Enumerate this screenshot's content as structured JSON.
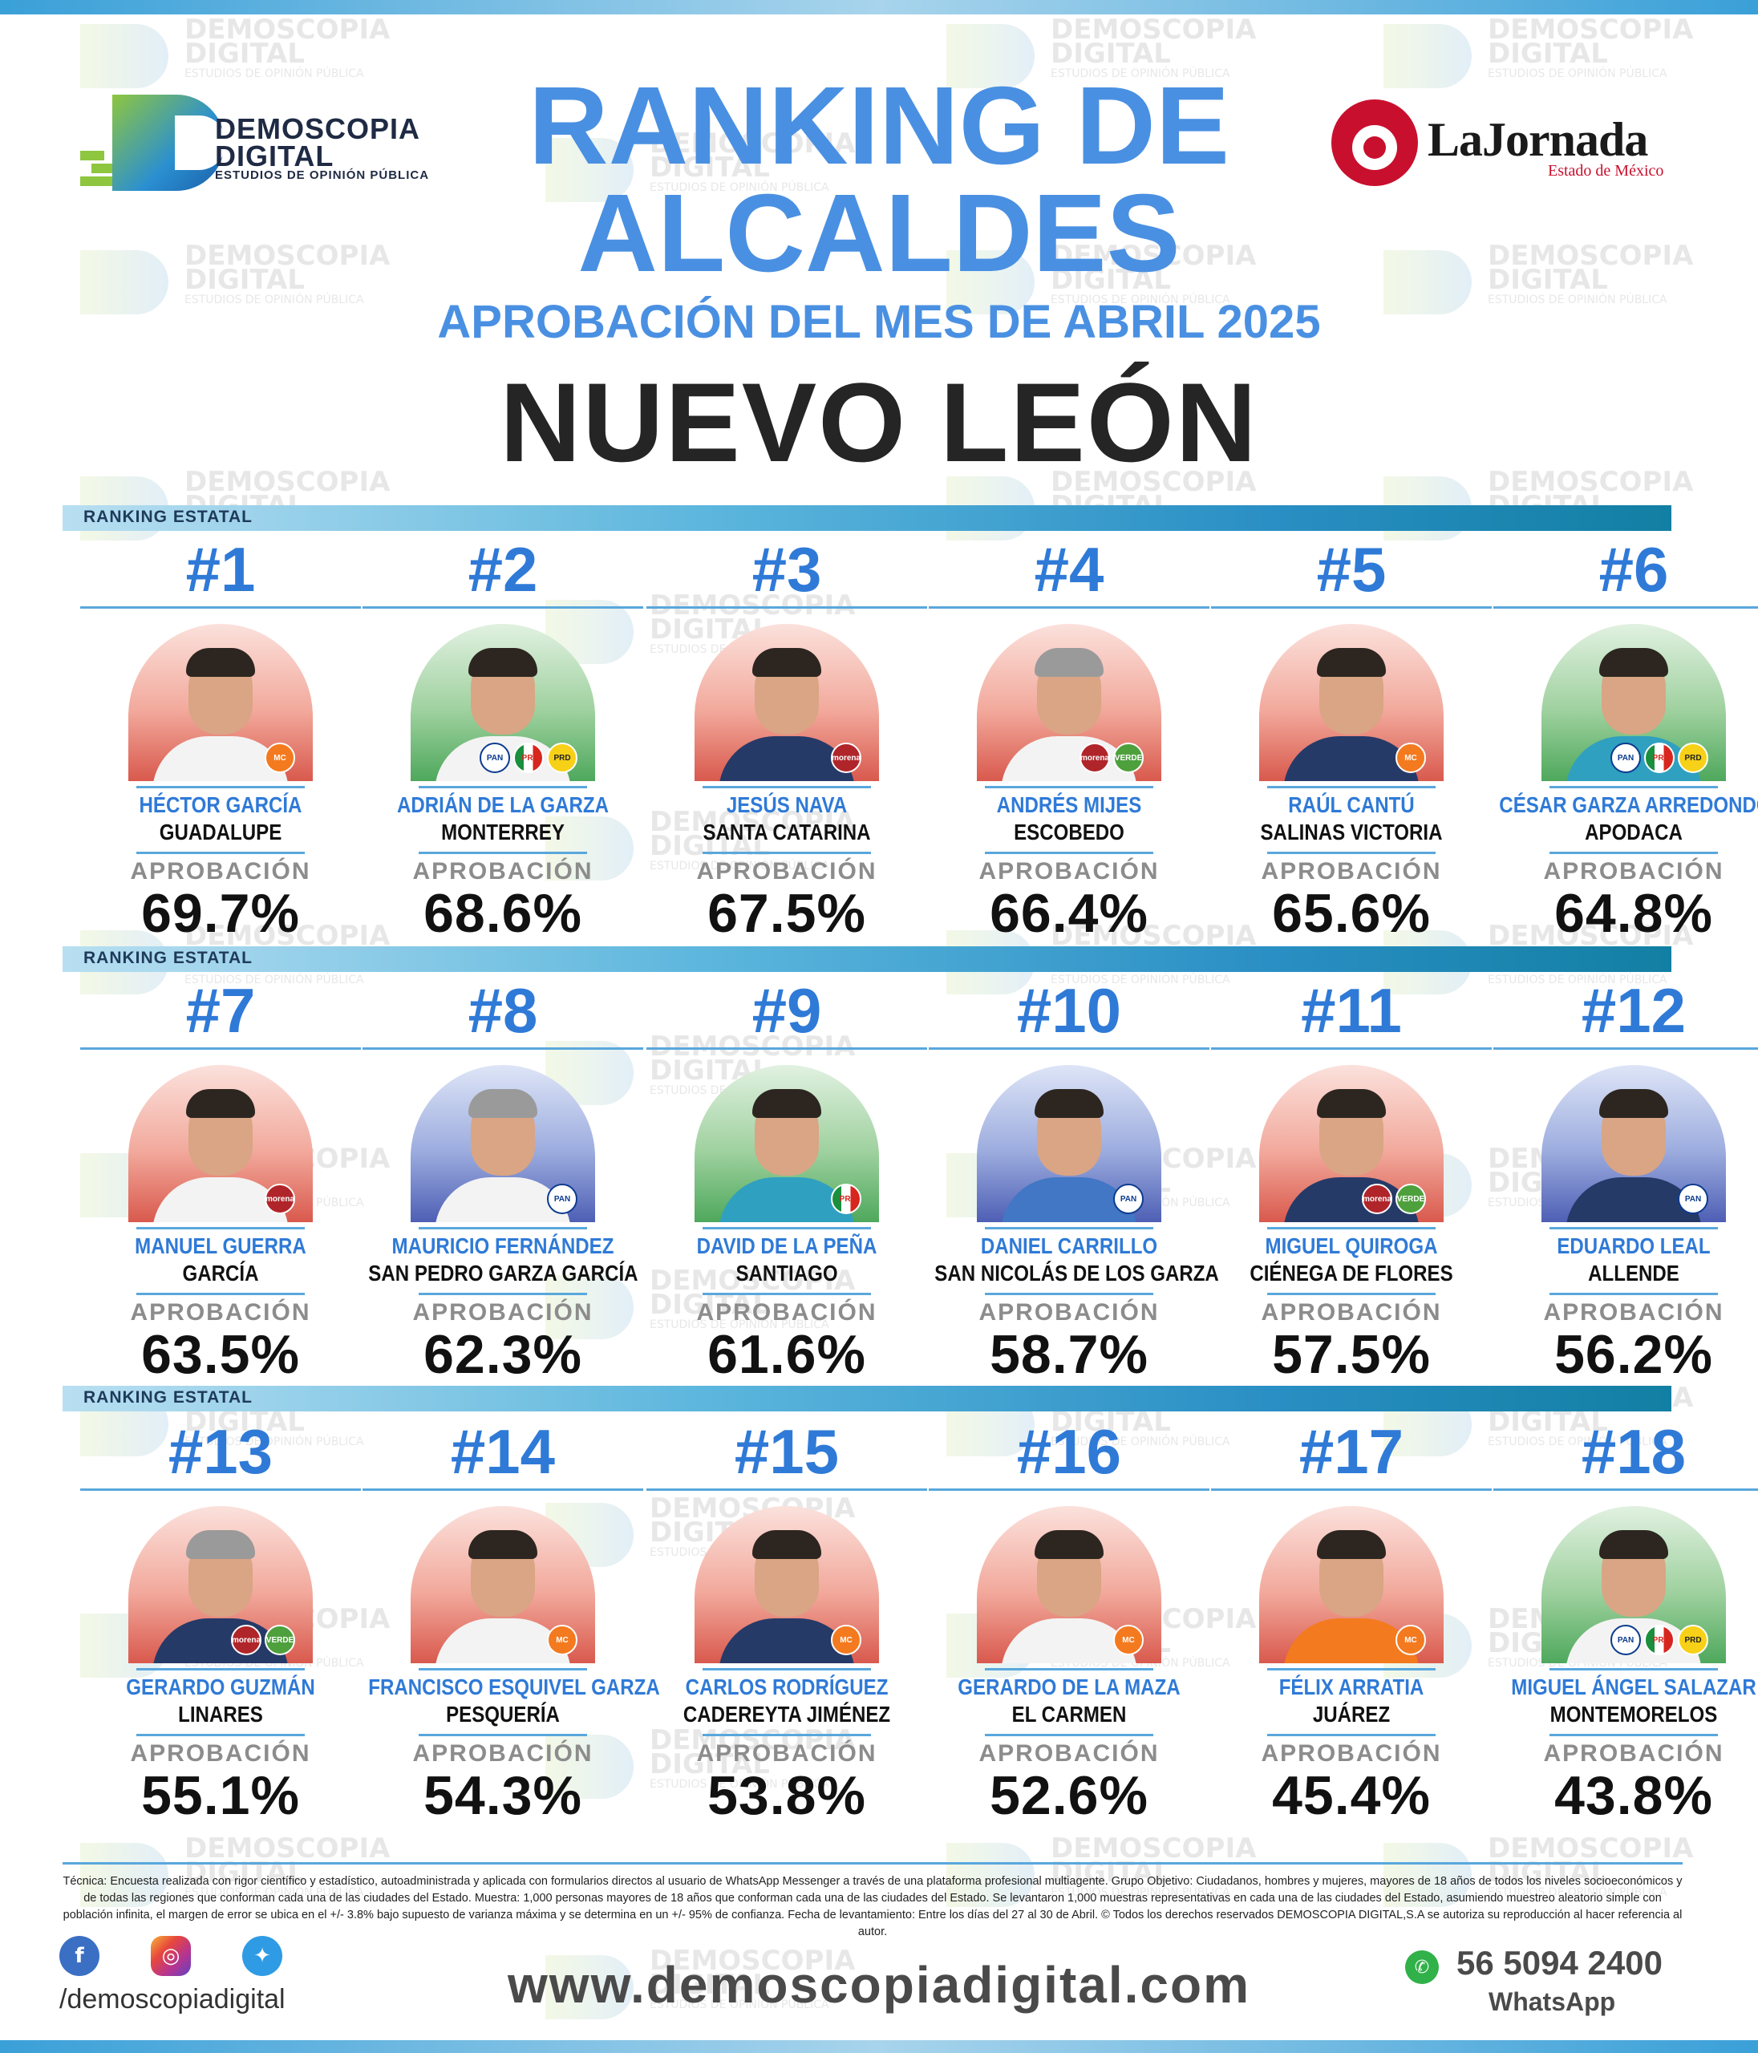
{
  "header": {
    "brand": {
      "name_line1": "DEMOSCOPIA",
      "name_line2": "DIGITAL",
      "tagline": "ESTUDIOS DE OPINIÓN PÚBLICA"
    },
    "title_line1": "RANKING DE",
    "title_line2": "ALCALDES",
    "subtitle": "APROBACIÓN DEL MES DE ABRIL 2025",
    "state": "NUEVO LEÓN",
    "partner": {
      "name": "LaJornada",
      "sub": "Estado de México"
    }
  },
  "watermark": {
    "line1": "DEMOSCOPIA",
    "line2": "DIGITAL",
    "line3": "ESTUDIOS DE OPINIÓN PÚBLICA"
  },
  "ribbon_label": "RANKING ESTATAL",
  "approval_label": "APROBACIÓN",
  "mayors": [
    {
      "rank": "#1",
      "name": "HÉCTOR GARCÍA",
      "municipality": "GUADALUPE",
      "approval": "69.7%",
      "bg": "red",
      "parties": [
        "mc"
      ]
    },
    {
      "rank": "#2",
      "name": "ADRIÁN DE LA GARZA",
      "municipality": "MONTERREY",
      "approval": "68.6%",
      "bg": "green",
      "parties": [
        "pan",
        "pri",
        "prd"
      ]
    },
    {
      "rank": "#3",
      "name": "JESÚS NAVA",
      "municipality": "SANTA CATARINA",
      "approval": "67.5%",
      "bg": "red",
      "parties": [
        "morena"
      ]
    },
    {
      "rank": "#4",
      "name": "ANDRÉS MIJES",
      "municipality": "ESCOBEDO",
      "approval": "66.4%",
      "bg": "red",
      "parties": [
        "morena",
        "verde"
      ]
    },
    {
      "rank": "#5",
      "name": "RAÚL CANTÚ",
      "municipality": "SALINAS VICTORIA",
      "approval": "65.6%",
      "bg": "red",
      "parties": [
        "mc"
      ]
    },
    {
      "rank": "#6",
      "name": "CÉSAR GARZA ARREDONDO",
      "municipality": "APODACA",
      "approval": "64.8%",
      "bg": "green",
      "parties": [
        "pan",
        "pri",
        "prd"
      ]
    },
    {
      "rank": "#7",
      "name": "MANUEL GUERRA",
      "municipality": "GARCÍA",
      "approval": "63.5%",
      "bg": "red",
      "parties": [
        "morena"
      ]
    },
    {
      "rank": "#8",
      "name": "MAURICIO FERNÁNDEZ",
      "municipality": "SAN PEDRO GARZA GARCÍA",
      "approval": "62.3%",
      "bg": "blue",
      "parties": [
        "pan"
      ]
    },
    {
      "rank": "#9",
      "name": "DAVID DE LA PEÑA",
      "municipality": "SANTIAGO",
      "approval": "61.6%",
      "bg": "green",
      "parties": [
        "pri"
      ]
    },
    {
      "rank": "#10",
      "name": "DANIEL CARRILLO",
      "municipality": "SAN NICOLÁS DE LOS GARZA",
      "approval": "58.7%",
      "bg": "blue",
      "parties": [
        "pan"
      ]
    },
    {
      "rank": "#11",
      "name": "MIGUEL QUIROGA",
      "municipality": "CIÉNEGA DE FLORES",
      "approval": "57.5%",
      "bg": "red",
      "parties": [
        "morena",
        "verde"
      ]
    },
    {
      "rank": "#12",
      "name": "EDUARDO LEAL",
      "municipality": "ALLENDE",
      "approval": "56.2%",
      "bg": "blue",
      "parties": [
        "pan"
      ]
    },
    {
      "rank": "#13",
      "name": "GERARDO GUZMÁN",
      "municipality": "LINARES",
      "approval": "55.1%",
      "bg": "red",
      "parties": [
        "morena",
        "verde"
      ]
    },
    {
      "rank": "#14",
      "name": "FRANCISCO ESQUIVEL GARZA",
      "municipality": "PESQUERÍA",
      "approval": "54.3%",
      "bg": "red",
      "parties": [
        "mc"
      ]
    },
    {
      "rank": "#15",
      "name": "CARLOS RODRÍGUEZ",
      "municipality": "CADEREYTA JIMÉNEZ",
      "approval": "53.8%",
      "bg": "red",
      "parties": [
        "mc"
      ]
    },
    {
      "rank": "#16",
      "name": "GERARDO DE LA MAZA",
      "municipality": "EL CARMEN",
      "approval": "52.6%",
      "bg": "red",
      "parties": [
        "mc"
      ]
    },
    {
      "rank": "#17",
      "name": "FÉLIX ARRATIA",
      "municipality": "JUÁREZ",
      "approval": "45.4%",
      "bg": "red",
      "parties": [
        "mc"
      ]
    },
    {
      "rank": "#18",
      "name": "MIGUEL ÁNGEL SALAZAR",
      "municipality": "MONTEMORELOS",
      "approval": "43.8%",
      "bg": "green",
      "parties": [
        "pan",
        "pri",
        "prd"
      ]
    }
  ],
  "party_labels": {
    "morena": "morena",
    "mc": "MC",
    "pan": "PAN",
    "pri": "PRI",
    "verde": "VERDE",
    "prd": "PRD"
  },
  "footer": {
    "technical": "Técnica: Encuesta realizada con rigor científico y estadístico, autoadministrada y aplicada con formularios directos al usuario de WhatsApp Messenger a través de una plataforma profesional multiagente. Grupo Objetivo: Ciudadanos, hombres y mujeres, mayores de 18 años de todos los niveles socioeconómicos y de todas las regiones que conforman cada una de las ciudades del Estado. Muestra: 1,000 personas mayores de 18 años que conforman cada una de las ciudades del Estado. Se levantaron 1,000 muestras representativas en cada una de las ciudades del Estado, asumiendo muestreo aleatorio simple con población infinita, el margen de error se ubica en el +/- 3.8% bajo supuesto de varianza máxima y se determina en un +/- 95% de confianza. Fecha de levantamiento: Entre los días del 27 al 30 de Abril. © Todos los derechos reservados DEMOSCOPIA DIGITAL,S.A se autoriza su reproducción al hacer referencia al autor.",
    "handle": "/demoscopiadigital",
    "website": "www.demoscopiadigital.com",
    "phone": "56 5094 2400",
    "whatsapp_label": "WhatsApp"
  }
}
